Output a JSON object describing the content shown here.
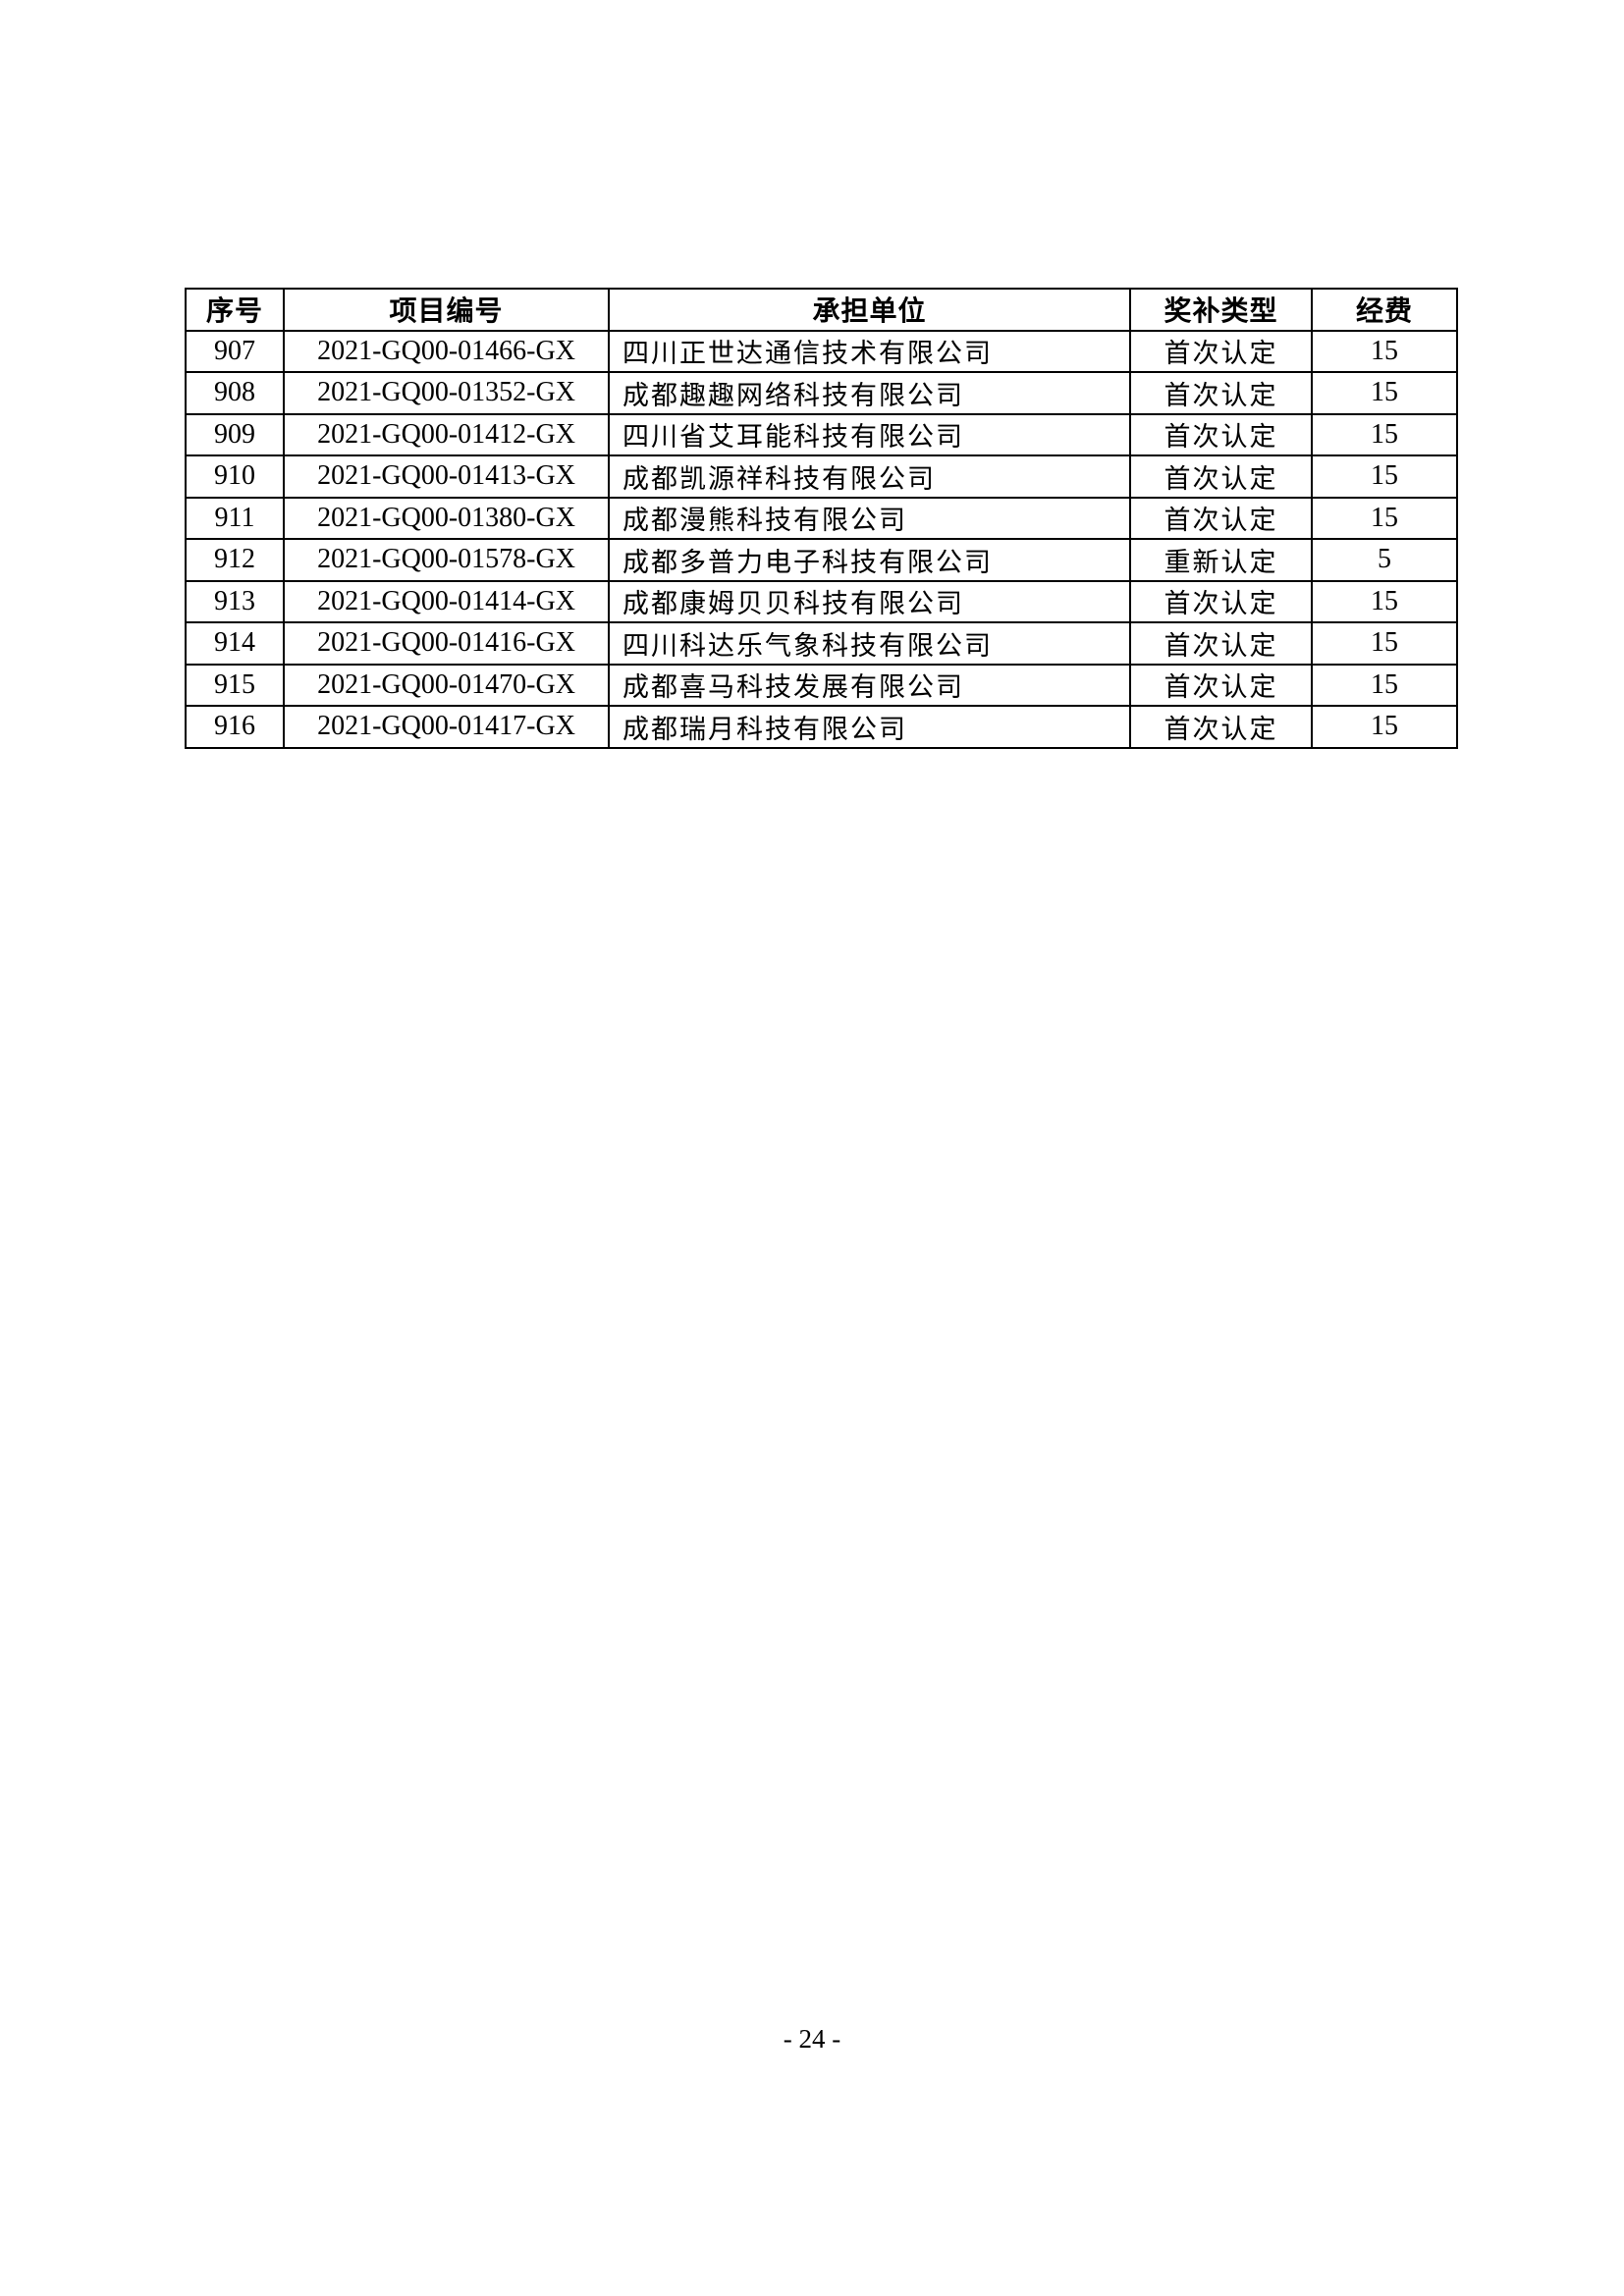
{
  "document": {
    "page_number": "- 24 -"
  },
  "table": {
    "headers": {
      "seq": "序号",
      "project_id": "项目编号",
      "company": "承担单位",
      "award_type": "奖补类型",
      "fund": "经费"
    },
    "rows": [
      {
        "seq": "907",
        "project_id": "2021-GQ00-01466-GX",
        "company": "四川正世达通信技术有限公司",
        "award_type": "首次认定",
        "fund": "15"
      },
      {
        "seq": "908",
        "project_id": "2021-GQ00-01352-GX",
        "company": "成都趣趣网络科技有限公司",
        "award_type": "首次认定",
        "fund": "15"
      },
      {
        "seq": "909",
        "project_id": "2021-GQ00-01412-GX",
        "company": "四川省艾耳能科技有限公司",
        "award_type": "首次认定",
        "fund": "15"
      },
      {
        "seq": "910",
        "project_id": "2021-GQ00-01413-GX",
        "company": "成都凯源祥科技有限公司",
        "award_type": "首次认定",
        "fund": "15"
      },
      {
        "seq": "911",
        "project_id": "2021-GQ00-01380-GX",
        "company": "成都漫熊科技有限公司",
        "award_type": "首次认定",
        "fund": "15"
      },
      {
        "seq": "912",
        "project_id": "2021-GQ00-01578-GX",
        "company": "成都多普力电子科技有限公司",
        "award_type": "重新认定",
        "fund": "5"
      },
      {
        "seq": "913",
        "project_id": "2021-GQ00-01414-GX",
        "company": "成都康姆贝贝科技有限公司",
        "award_type": "首次认定",
        "fund": "15"
      },
      {
        "seq": "914",
        "project_id": "2021-GQ00-01416-GX",
        "company": "四川科达乐气象科技有限公司",
        "award_type": "首次认定",
        "fund": "15"
      },
      {
        "seq": "915",
        "project_id": "2021-GQ00-01470-GX",
        "company": "成都喜马科技发展有限公司",
        "award_type": "首次认定",
        "fund": "15"
      },
      {
        "seq": "916",
        "project_id": "2021-GQ00-01417-GX",
        "company": "成都瑞月科技有限公司",
        "award_type": "首次认定",
        "fund": "15"
      }
    ]
  }
}
